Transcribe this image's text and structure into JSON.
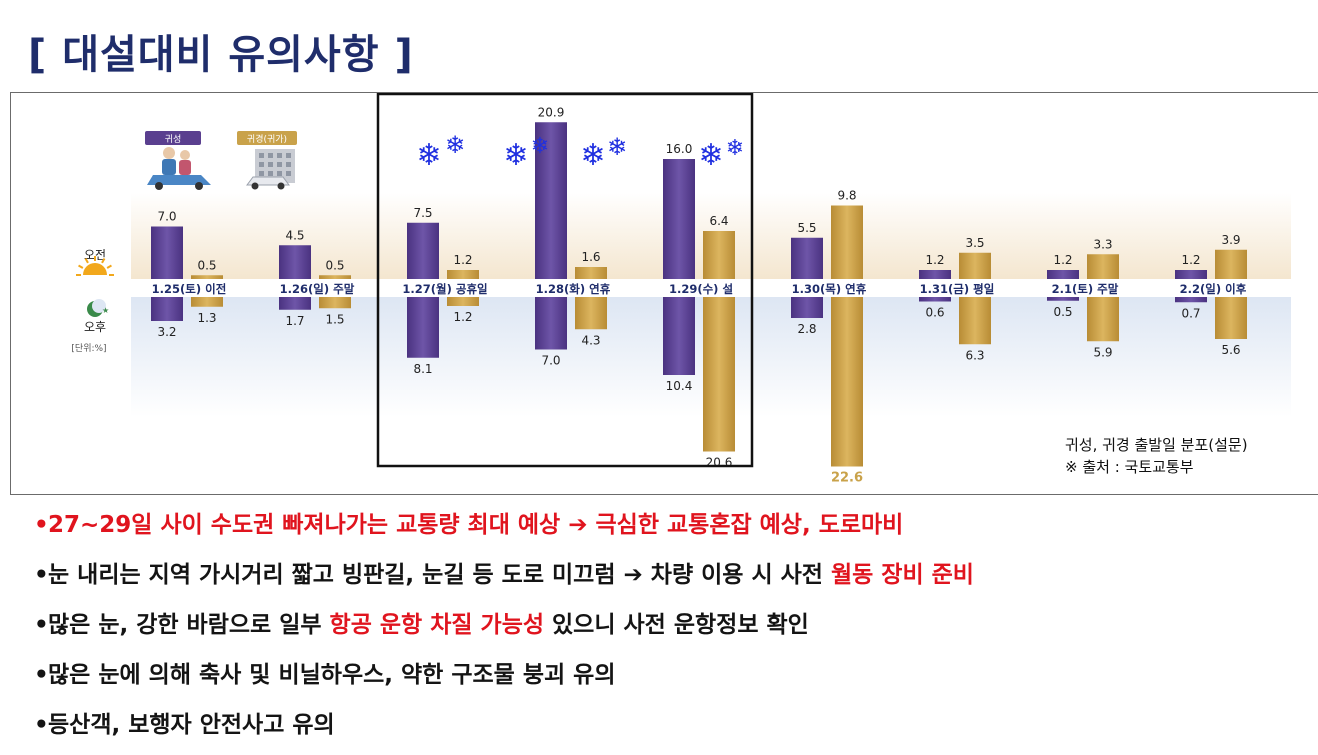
{
  "title": "[ 대설대비 유의사항 ]",
  "legend": {
    "outbound": "귀성",
    "inbound": "귀경(귀가)"
  },
  "labels": {
    "am": "오전",
    "pm": "오후",
    "unit": "[단위:%]"
  },
  "source": {
    "line1": "귀성, 귀경 출발일 분포(설문)",
    "line2": "※ 출처 : 국토교통부"
  },
  "colors": {
    "outbound": "#5a3f8f",
    "inbound": "#c9a24a",
    "highlight_box": "#111111",
    "snow": "#1f2fe0",
    "accent_red": "#e0141e"
  },
  "icons": {
    "am": "sun-icon",
    "pm": "moon-star-icon",
    "snow": "snowflake-icon",
    "outbound_image": "family-car-illustration",
    "inbound_image": "building-car-illustration"
  },
  "chart_data": {
    "type": "bar",
    "categories": [
      "1.25(토) 이전",
      "1.26(일) 주말",
      "1.27(월) 공휴일",
      "1.28(화) 연휴",
      "1.29(수) 설",
      "1.30(목) 연휴",
      "1.31(금) 평일",
      "2.1(토) 주말",
      "2.2(일) 이후"
    ],
    "series": [
      {
        "name": "귀성",
        "am": [
          7.0,
          4.5,
          7.5,
          20.9,
          16.0,
          5.5,
          1.2,
          1.2,
          1.2
        ],
        "pm": [
          3.2,
          1.7,
          8.1,
          7.0,
          10.4,
          2.8,
          0.6,
          0.5,
          0.7
        ]
      },
      {
        "name": "귀경(귀가)",
        "am": [
          0.5,
          0.5,
          1.2,
          1.6,
          6.4,
          9.8,
          3.5,
          3.3,
          3.9
        ],
        "pm": [
          1.3,
          1.5,
          1.2,
          4.3,
          20.6,
          22.6,
          6.3,
          5.9,
          5.6
        ]
      }
    ],
    "am_label": "오전",
    "pm_label": "오후",
    "unit": "[단위:%]",
    "highlighted_categories": [
      "1.27(월) 공휴일",
      "1.28(화) 연휴",
      "1.29(수) 설"
    ],
    "highlighted_value": "22.6",
    "ylabel": "",
    "grid": false,
    "legend_position": "top-left"
  },
  "bullets": [
    {
      "segments": [
        {
          "text": "27~29일 사이 수도권 빠져나가는 교통량 최대 예상 ",
          "red": true
        },
        {
          "text": "➔",
          "red": true
        },
        {
          "text": " 극심한 교통혼잡 예상, 도로마비",
          "red": true
        }
      ]
    },
    {
      "segments": [
        {
          "text": "눈 내리는 지역 가시거리 짧고 빙판길, 눈길 등 도로 미끄럼  ",
          "red": false
        },
        {
          "text": "➔",
          "red": false
        },
        {
          "text": " 차량 이용 시 사전 ",
          "red": false
        },
        {
          "text": "월동 장비 준비",
          "red": true
        }
      ]
    },
    {
      "segments": [
        {
          "text": "많은 눈, 강한 바람으로 일부 ",
          "red": false
        },
        {
          "text": "항공 운항 차질 가능성",
          "red": true
        },
        {
          "text": " 있으니 사전 운항정보 확인",
          "red": false
        }
      ]
    },
    {
      "segments": [
        {
          "text": "많은 눈에 의해 축사 및 비닐하우스, 약한 구조물 붕괴 유의",
          "red": false
        }
      ]
    },
    {
      "segments": [
        {
          "text": "등산객, 보행자 안전사고 유의",
          "red": false
        }
      ]
    }
  ]
}
